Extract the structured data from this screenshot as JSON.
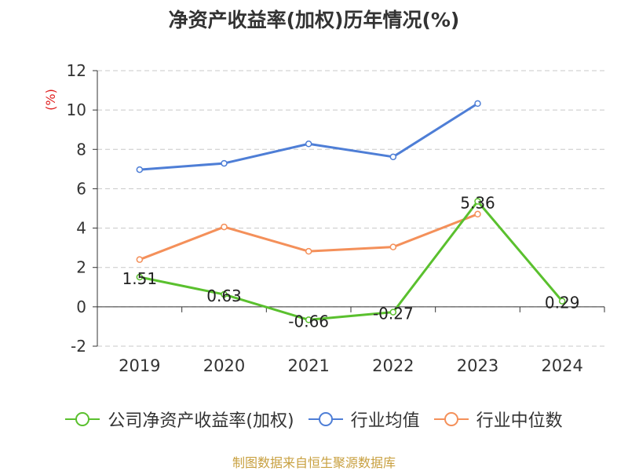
{
  "chart_data": {
    "type": "line",
    "title": "净资产收益率(加权)历年情况(%)",
    "ylabel": "(%)",
    "xlabel": "",
    "categories": [
      "2019",
      "2020",
      "2021",
      "2022",
      "2023",
      "2024"
    ],
    "ylim": [
      -2,
      12
    ],
    "yticks": [
      -2,
      0,
      2,
      4,
      6,
      8,
      10,
      12
    ],
    "grid": true,
    "legend_position": "bottom",
    "series": [
      {
        "name": "公司净资产收益率(加权)",
        "color": "#5ac02e",
        "values": [
          1.51,
          0.63,
          -0.66,
          -0.27,
          5.36,
          0.29
        ],
        "show_labels": true
      },
      {
        "name": "行业均值",
        "color": "#4e7ed6",
        "values": [
          6.97,
          7.29,
          8.28,
          7.62,
          10.33,
          null
        ],
        "show_labels": false
      },
      {
        "name": "行业中位数",
        "color": "#f4905a",
        "values": [
          2.4,
          4.06,
          2.82,
          3.04,
          4.71,
          null
        ],
        "show_labels": false
      }
    ]
  },
  "source": "制图数据来自恒生聚源数据库"
}
